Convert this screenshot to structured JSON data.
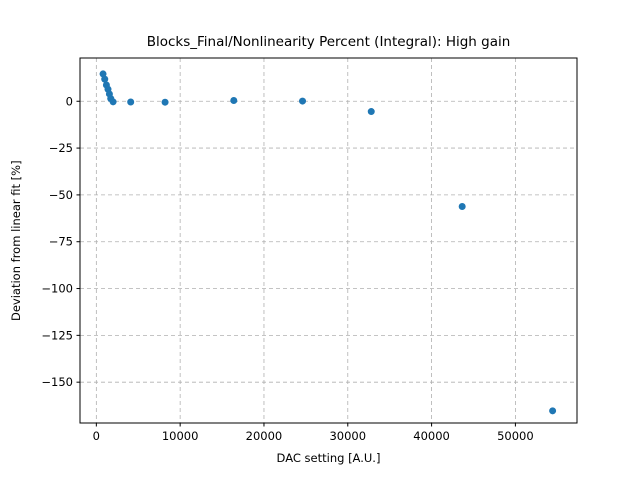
{
  "figure": {
    "title": "Blocks_Final/Nonlinearity Percent (Integral): High gain",
    "xlabel": "DAC setting [A.U.]",
    "ylabel": "Deviation from linear fit [%]"
  },
  "chart_data": {
    "type": "scatter",
    "title": "Blocks_Final/Nonlinearity Percent (Integral): High gain",
    "xlabel": "DAC setting [A.U.]",
    "ylabel": "Deviation from linear fit [%]",
    "legend": null,
    "grid": "on",
    "grid_color": "#b0b0b0",
    "grid_linestyle": "dashed",
    "marker_color": "#1f77b4",
    "marker_radius_px": 3.5,
    "background_color": "#ffffff",
    "spine_color": "#000000",
    "xlim": [
      -1950,
      57350
    ],
    "ylim": [
      -171.8,
      23.1
    ],
    "xticks": [
      0,
      10000,
      20000,
      30000,
      40000,
      50000
    ],
    "xtick_labels": [
      "0",
      "10000",
      "20000",
      "30000",
      "40000",
      "50000"
    ],
    "yticks": [
      0,
      -25,
      -50,
      -75,
      -100,
      -125,
      -150
    ],
    "ytick_labels": [
      "0",
      "−25",
      "−50",
      "−75",
      "−100",
      "−125",
      "−150"
    ],
    "points": [
      [
        800,
        14.6
      ],
      [
        1000,
        11.8
      ],
      [
        1200,
        8.7
      ],
      [
        1390,
        6.4
      ],
      [
        1560,
        3.9
      ],
      [
        1720,
        1.4
      ],
      [
        2000,
        -0.3
      ],
      [
        4100,
        -0.4
      ],
      [
        8200,
        -0.5
      ],
      [
        16400,
        0.4
      ],
      [
        24600,
        0.1
      ],
      [
        32800,
        -5.5
      ],
      [
        43650,
        -56.2
      ],
      [
        54440,
        -165.3
      ]
    ]
  }
}
